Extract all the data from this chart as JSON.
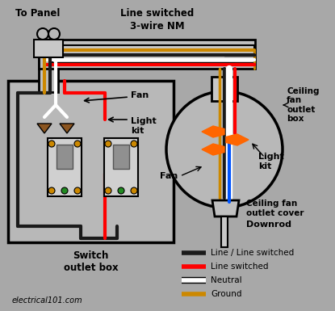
{
  "bg_color": "#a8a8a8",
  "wire_colors": {
    "black": "#1a1a1a",
    "red": "#ff0000",
    "white": "#ffffff",
    "ground": "#cc8800",
    "blue": "#0055ff",
    "orange": "#ff6600",
    "brown": "#8B5520"
  },
  "legend": [
    {
      "label": "Line / Line switched",
      "color": "#1a1a1a"
    },
    {
      "label": "Line switched",
      "color": "#ff0000"
    },
    {
      "label": "Neutral",
      "color": "#ffffff"
    },
    {
      "label": "Ground",
      "color": "#cc8800"
    }
  ],
  "labels": {
    "to_panel": "To Panel",
    "line_switched": "Line switched",
    "three_wire": "3-wire NM",
    "fan": "Fan",
    "light_kit": "Light\nkit",
    "switch_outlet_box": "Switch\noutlet box",
    "ceiling_fan_outlet_box": "Ceiling\nfan\noutlet\nbox",
    "light_kit_r": "Light\nkit",
    "ceiling_fan_outlet_cover": "Ceiling fan\noutlet cover",
    "downrod": "Downrod",
    "fan_r": "Fan",
    "website": "electrical101.com"
  }
}
